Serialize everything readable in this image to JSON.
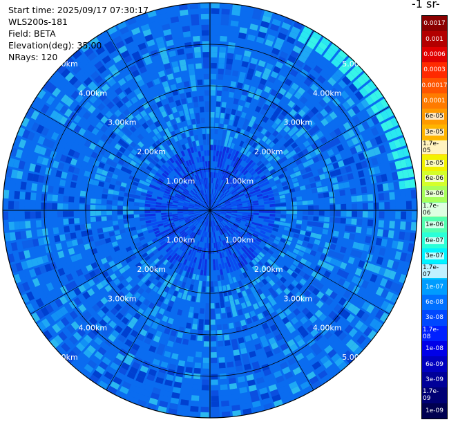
{
  "info": {
    "start_time": "Start time: 2025/09/17 07:30:17",
    "instrument": "WLS200s-181",
    "field": "Field: BETA",
    "elevation": "Elevation(deg): 35.00",
    "nrays": "NRays: 120"
  },
  "colorbar": {
    "title": "-1 sr-",
    "labels": [
      "0.0017",
      "0.001",
      "0.0006",
      "0.0003",
      "0.00017",
      "0.0001",
      "6e-05",
      "3e-05",
      "1.7e-05",
      "1e-05",
      "6e-06",
      "3e-06",
      "1.7e-06",
      "1e-06",
      "6e-07",
      "3e-07",
      "1.7e-07",
      "1e-07",
      "6e-08",
      "3e-08",
      "1.7e-08",
      "1e-08",
      "6e-09",
      "3e-09",
      "1.7e-09",
      "1e-09"
    ],
    "colors": [
      "#8b0000",
      "#b30000",
      "#e00000",
      "#ff2a00",
      "#ff5500",
      "#ff7b00",
      "#ff9a00",
      "#ffb400",
      "#ffd000",
      "#f2f200",
      "#d4ff2a",
      "#a8ff5a",
      "#7dff86",
      "#52ffb0",
      "#2affd8",
      "#00f4ff",
      "#00c8ff",
      "#009cff",
      "#0070ff",
      "#0048ff",
      "#0020ff",
      "#0000e8",
      "#0000c0",
      "#000098",
      "#000074",
      "#000050"
    ],
    "light_text_indices": [
      0,
      1,
      2,
      3,
      4,
      5,
      17,
      18,
      19,
      20,
      21,
      22,
      23,
      24,
      25
    ]
  },
  "chart_data": {
    "type": "ppi",
    "field": "BETA",
    "n_rays": 120,
    "elevation_deg": 35.0,
    "max_range_km": 5.0,
    "range_ring_km": [
      1,
      2,
      3,
      4,
      5
    ],
    "range_ring_labels": [
      "1.00km",
      "2.00km",
      "3.00km",
      "4.00km",
      "5.00km"
    ],
    "color_scale": "log",
    "value_range": [
      1e-09,
      0.0017
    ],
    "typical_values": {
      "near_center": 1e-08,
      "mid_range": 6e-08,
      "far_range": 6e-08,
      "edge_max": 3e-07
    },
    "background_color": "#0a6cf0"
  }
}
